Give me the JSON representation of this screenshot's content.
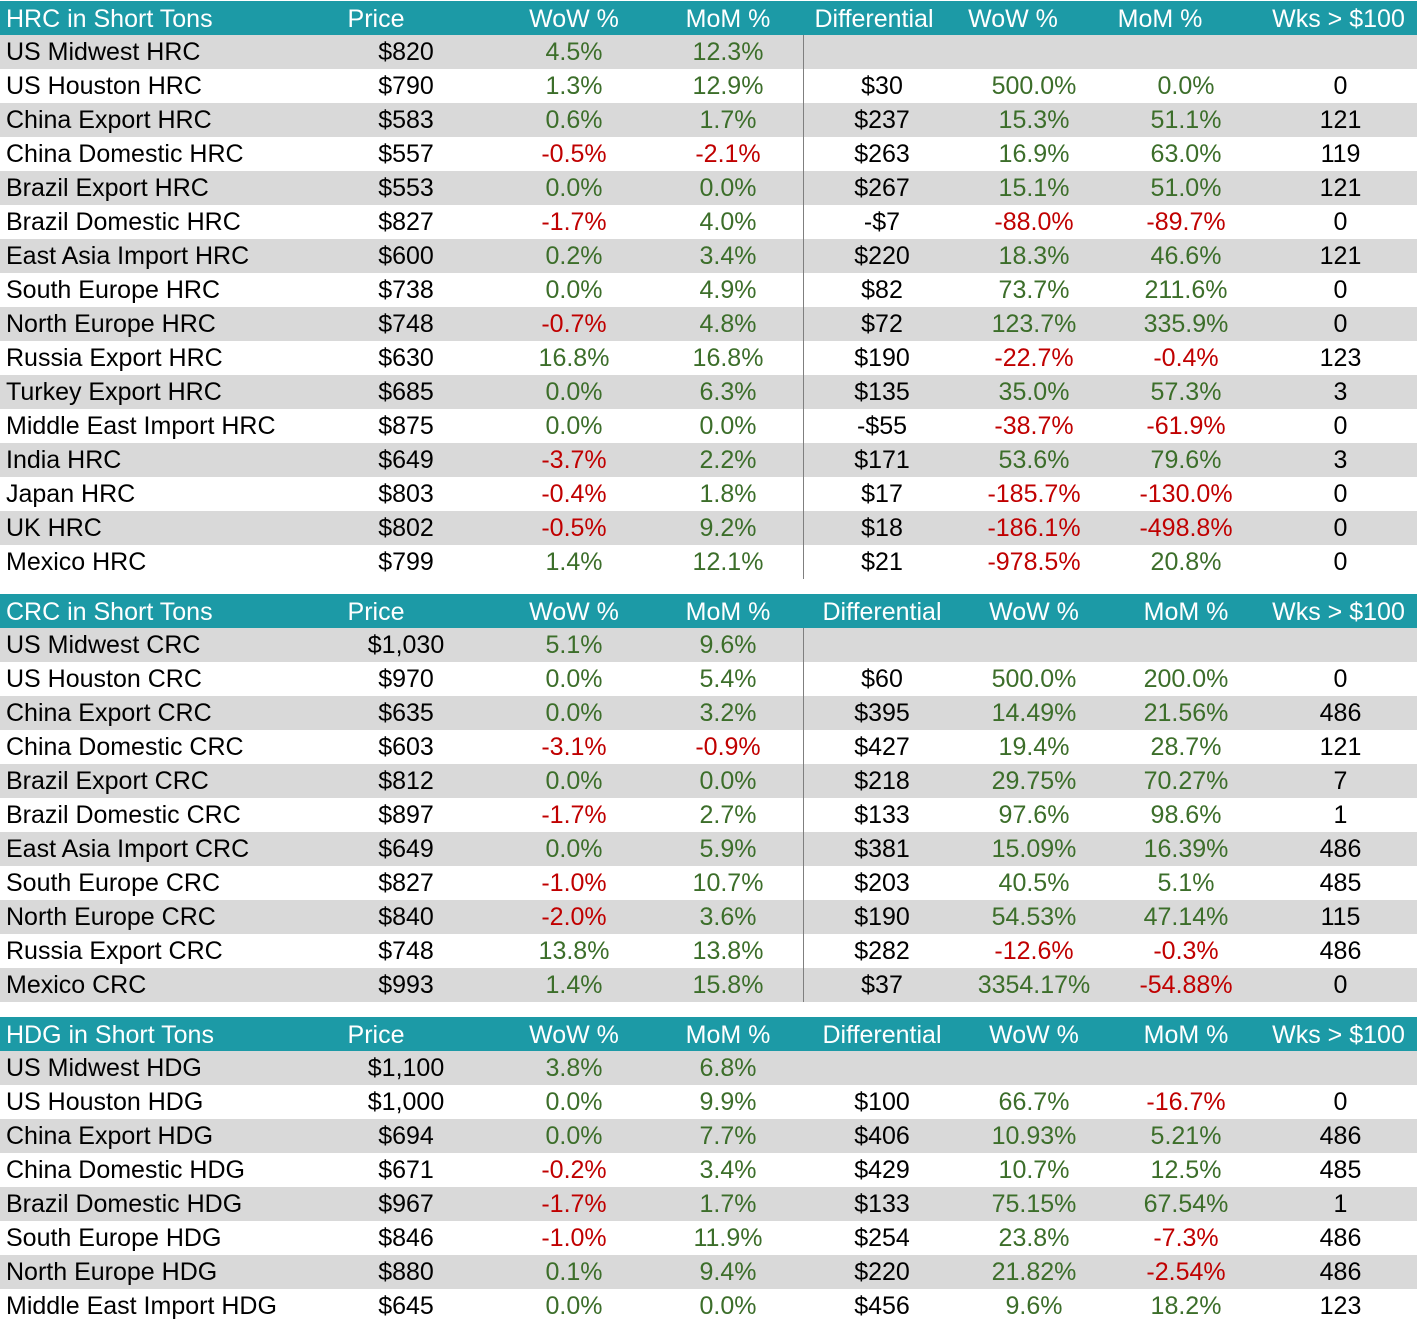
{
  "colors": {
    "header_bg": "#1c9aa6",
    "row_shade": "#d9d9d9",
    "positive": "#3c6e2a",
    "negative": "#c00000"
  },
  "sections": [
    {
      "header": [
        "HRC in Short Tons",
        "Price",
        "WoW %",
        "MoM %",
        "Differential",
        "WoW %",
        "MoM %",
        "Wks > $100"
      ],
      "rows": [
        [
          "US Midwest HRC",
          "$820",
          "4.5%",
          "12.3%",
          "",
          "",
          "",
          ""
        ],
        [
          "US Houston HRC",
          "$790",
          "1.3%",
          "12.9%",
          "$30",
          "500.0%",
          "0.0%",
          "0"
        ],
        [
          "China Export HRC",
          "$583",
          "0.6%",
          "1.7%",
          "$237",
          "15.3%",
          "51.1%",
          "121"
        ],
        [
          "China Domestic HRC",
          "$557",
          "-0.5%",
          "-2.1%",
          "$263",
          "16.9%",
          "63.0%",
          "119"
        ],
        [
          "Brazil Export HRC",
          "$553",
          "0.0%",
          "0.0%",
          "$267",
          "15.1%",
          "51.0%",
          "121"
        ],
        [
          "Brazil Domestic HRC",
          "$827",
          "-1.7%",
          "4.0%",
          "-$7",
          "-88.0%",
          "-89.7%",
          "0"
        ],
        [
          "East Asia Import HRC",
          "$600",
          "0.2%",
          "3.4%",
          "$220",
          "18.3%",
          "46.6%",
          "121"
        ],
        [
          "South Europe HRC",
          "$738",
          "0.0%",
          "4.9%",
          "$82",
          "73.7%",
          "211.6%",
          "0"
        ],
        [
          "North Europe HRC",
          "$748",
          "-0.7%",
          "4.8%",
          "$72",
          "123.7%",
          "335.9%",
          "0"
        ],
        [
          "Russia Export HRC",
          "$630",
          "16.8%",
          "16.8%",
          "$190",
          "-22.7%",
          "-0.4%",
          "123"
        ],
        [
          "Turkey Export HRC",
          "$685",
          "0.0%",
          "6.3%",
          "$135",
          "35.0%",
          "57.3%",
          "3"
        ],
        [
          "Middle East Import HRC",
          "$875",
          "0.0%",
          "0.0%",
          "-$55",
          "-38.7%",
          "-61.9%",
          "0"
        ],
        [
          "India HRC",
          "$649",
          "-3.7%",
          "2.2%",
          "$171",
          "53.6%",
          "79.6%",
          "3"
        ],
        [
          "Japan HRC",
          "$803",
          "-0.4%",
          "1.8%",
          "$17",
          "-185.7%",
          "-130.0%",
          "0"
        ],
        [
          "UK HRC",
          "$802",
          "-0.5%",
          "9.2%",
          "$18",
          "-186.1%",
          "-498.8%",
          "0"
        ],
        [
          "Mexico HRC",
          "$799",
          "1.4%",
          "12.1%",
          "$21",
          "-978.5%",
          "20.8%",
          "0"
        ]
      ]
    },
    {
      "header": [
        "CRC in Short Tons",
        "Price",
        "WoW %",
        "MoM %",
        "Differential",
        "WoW %",
        "MoM %",
        "Wks > $100"
      ],
      "rows": [
        [
          "US Midwest CRC",
          "$1,030",
          "5.1%",
          "9.6%",
          "",
          "",
          "",
          ""
        ],
        [
          "US Houston CRC",
          "$970",
          "0.0%",
          "5.4%",
          "$60",
          "500.0%",
          "200.0%",
          "0"
        ],
        [
          "China Export CRC",
          "$635",
          "0.0%",
          "3.2%",
          "$395",
          "14.49%",
          "21.56%",
          "486"
        ],
        [
          "China Domestic CRC",
          "$603",
          "-3.1%",
          "-0.9%",
          "$427",
          "19.4%",
          "28.7%",
          "121"
        ],
        [
          "Brazil Export CRC",
          "$812",
          "0.0%",
          "0.0%",
          "$218",
          "29.75%",
          "70.27%",
          "7"
        ],
        [
          "Brazil Domestic CRC",
          "$897",
          "-1.7%",
          "2.7%",
          "$133",
          "97.6%",
          "98.6%",
          "1"
        ],
        [
          "East Asia Import CRC",
          "$649",
          "0.0%",
          "5.9%",
          "$381",
          "15.09%",
          "16.39%",
          "486"
        ],
        [
          "South Europe CRC",
          "$827",
          "-1.0%",
          "10.7%",
          "$203",
          "40.5%",
          "5.1%",
          "485"
        ],
        [
          "North Europe CRC",
          "$840",
          "-2.0%",
          "3.6%",
          "$190",
          "54.53%",
          "47.14%",
          "115"
        ],
        [
          "Russia Export CRC",
          "$748",
          "13.8%",
          "13.8%",
          "$282",
          "-12.6%",
          "-0.3%",
          "486"
        ],
        [
          "Mexico CRC",
          "$993",
          "1.4%",
          "15.8%",
          "$37",
          "3354.17%",
          "-54.88%",
          "0"
        ]
      ]
    },
    {
      "header": [
        "HDG in Short Tons",
        "Price",
        "WoW %",
        "MoM %",
        "Differential",
        "WoW %",
        "MoM %",
        "Wks > $100"
      ],
      "rows": [
        [
          "US Midwest HDG",
          "$1,100",
          "3.8%",
          "6.8%",
          "",
          "",
          "",
          ""
        ],
        [
          "US Houston HDG",
          "$1,000",
          "0.0%",
          "9.9%",
          "$100",
          "66.7%",
          "-16.7%",
          "0"
        ],
        [
          "China Export HDG",
          "$694",
          "0.0%",
          "7.7%",
          "$406",
          "10.93%",
          "5.21%",
          "486"
        ],
        [
          "China Domestic HDG",
          "$671",
          "-0.2%",
          "3.4%",
          "$429",
          "10.7%",
          "12.5%",
          "485"
        ],
        [
          "Brazil Domestic HDG",
          "$967",
          "-1.7%",
          "1.7%",
          "$133",
          "75.15%",
          "67.54%",
          "1"
        ],
        [
          "South Europe HDG",
          "$846",
          "-1.0%",
          "11.9%",
          "$254",
          "23.8%",
          "-7.3%",
          "486"
        ],
        [
          "North Europe HDG",
          "$880",
          "0.1%",
          "9.4%",
          "$220",
          "21.82%",
          "-2.54%",
          "486"
        ],
        [
          "Middle East Import HDG",
          "$645",
          "0.0%",
          "0.0%",
          "$456",
          "9.6%",
          "18.2%",
          "123"
        ]
      ]
    }
  ]
}
